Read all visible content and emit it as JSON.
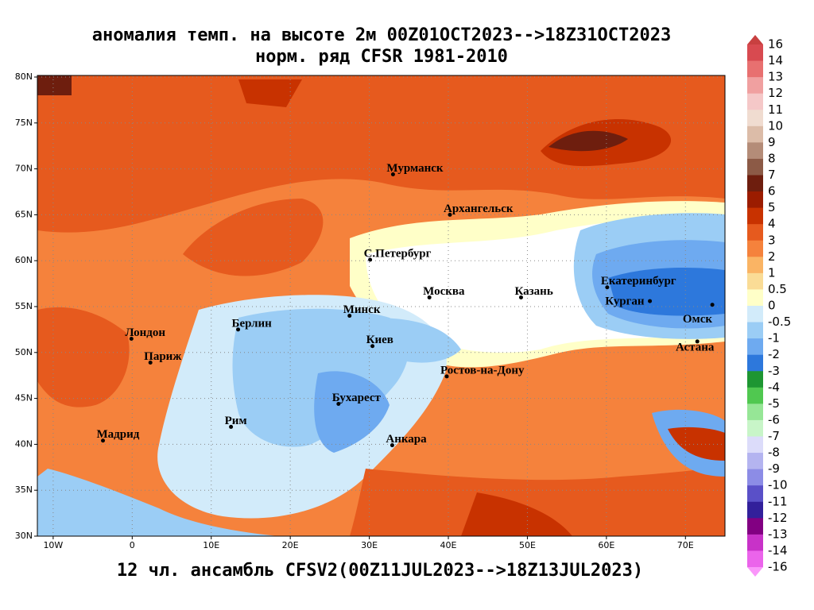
{
  "title": [
    "аномалия темп. на высоте 2м 00Z01OCT2023-->18Z31OCT2023",
    "норм. ряд CFSR 1981-2010"
  ],
  "footer": "12 чл. ансамбль CFSV2(00Z11JUL2023-->18Z13JUL2023)",
  "map": {
    "lonlim": [
      -12,
      75
    ],
    "latlim": [
      30,
      80
    ],
    "lon_ticks": [
      {
        "value": -10,
        "label": "10W"
      },
      0,
      {
        "value": 10,
        "label": "10E"
      },
      {
        "value": 20,
        "label": "20E"
      },
      {
        "value": 30,
        "label": "30E"
      },
      {
        "value": 40,
        "label": "40E"
      },
      {
        "value": 50,
        "label": "50E"
      },
      {
        "value": 60,
        "label": "60E"
      },
      {
        "value": 70,
        "label": "70E"
      }
    ],
    "lat_ticks": [
      {
        "value": 30,
        "label": "30N"
      },
      {
        "value": 35,
        "label": "35N"
      },
      {
        "value": 40,
        "label": "40N"
      },
      {
        "value": 45,
        "label": "45N"
      },
      {
        "value": 50,
        "label": "50N"
      },
      {
        "value": 55,
        "label": "55N"
      },
      {
        "value": 60,
        "label": "60N"
      },
      {
        "value": 65,
        "label": "65N"
      },
      {
        "value": 70,
        "label": "70N"
      },
      {
        "value": 75,
        "label": "75N"
      },
      {
        "value": 80,
        "label": "80N"
      }
    ],
    "cities": [
      {
        "name": "Мурманск",
        "lon": 33.0,
        "lat": 69.4
      },
      {
        "name": "Архангельск",
        "lon": 40.2,
        "lat": 65.0
      },
      {
        "name": "С.Петербург",
        "lon": 30.1,
        "lat": 60.1
      },
      {
        "name": "Москва",
        "lon": 37.6,
        "lat": 56.0
      },
      {
        "name": "Казань",
        "lon": 49.2,
        "lat": 56.0
      },
      {
        "name": "Екатеринбург",
        "lon": 60.1,
        "lat": 57.1
      },
      {
        "name": "Курган",
        "lon": 65.5,
        "lat": 55.6
      },
      {
        "name": "Омск",
        "lon": 73.4,
        "lat": 55.2
      },
      {
        "name": "Астана",
        "lon": 71.5,
        "lat": 51.2
      },
      {
        "name": "Минск",
        "lon": 27.5,
        "lat": 54.0
      },
      {
        "name": "Берлин",
        "lon": 13.4,
        "lat": 52.5
      },
      {
        "name": "Лондон",
        "lon": -0.1,
        "lat": 51.5
      },
      {
        "name": "Париж",
        "lon": 2.3,
        "lat": 48.9
      },
      {
        "name": "Киев",
        "lon": 30.4,
        "lat": 50.7
      },
      {
        "name": "Ростов-на-Дону",
        "lon": 39.8,
        "lat": 47.4
      },
      {
        "name": "Бухарест",
        "lon": 26.1,
        "lat": 44.4
      },
      {
        "name": "Рим",
        "lon": 12.5,
        "lat": 41.9
      },
      {
        "name": "Мадрид",
        "lon": -3.7,
        "lat": 40.4
      },
      {
        "name": "Анкара",
        "lon": 32.9,
        "lat": 39.9
      }
    ]
  },
  "colorbar": {
    "levels": [
      16,
      14,
      13,
      12,
      11,
      10,
      9,
      8,
      7,
      6,
      5,
      4,
      3,
      2,
      1,
      0.5,
      0,
      -0.5,
      -1,
      -2,
      -3,
      -4,
      -5,
      -6,
      -7,
      -8,
      -9,
      -10,
      -11,
      -12,
      -13,
      -14,
      -16
    ],
    "colors": [
      "#c84040",
      "#d84a50",
      "#e87070",
      "#f0a0a0",
      "#f5c8c8",
      "#f0dcd0",
      "#dcbca8",
      "#b48c78",
      "#8c5a46",
      "#6e1e0e",
      "#9b1c00",
      "#c83200",
      "#e65a1e",
      "#f5823c",
      "#fab464",
      "#fadc96",
      "#ffffc8",
      "#d2ebfa",
      "#9bcdf5",
      "#6eaaf0",
      "#2d78dc",
      "#1e9632",
      "#50c850",
      "#96e696",
      "#c8f5c8",
      "#dcdcfa",
      "#b4b4f0",
      "#8c8ce6",
      "#5a50c8",
      "#32209b",
      "#820082",
      "#c832c8",
      "#eb64eb",
      "#fa96fa"
    ]
  }
}
